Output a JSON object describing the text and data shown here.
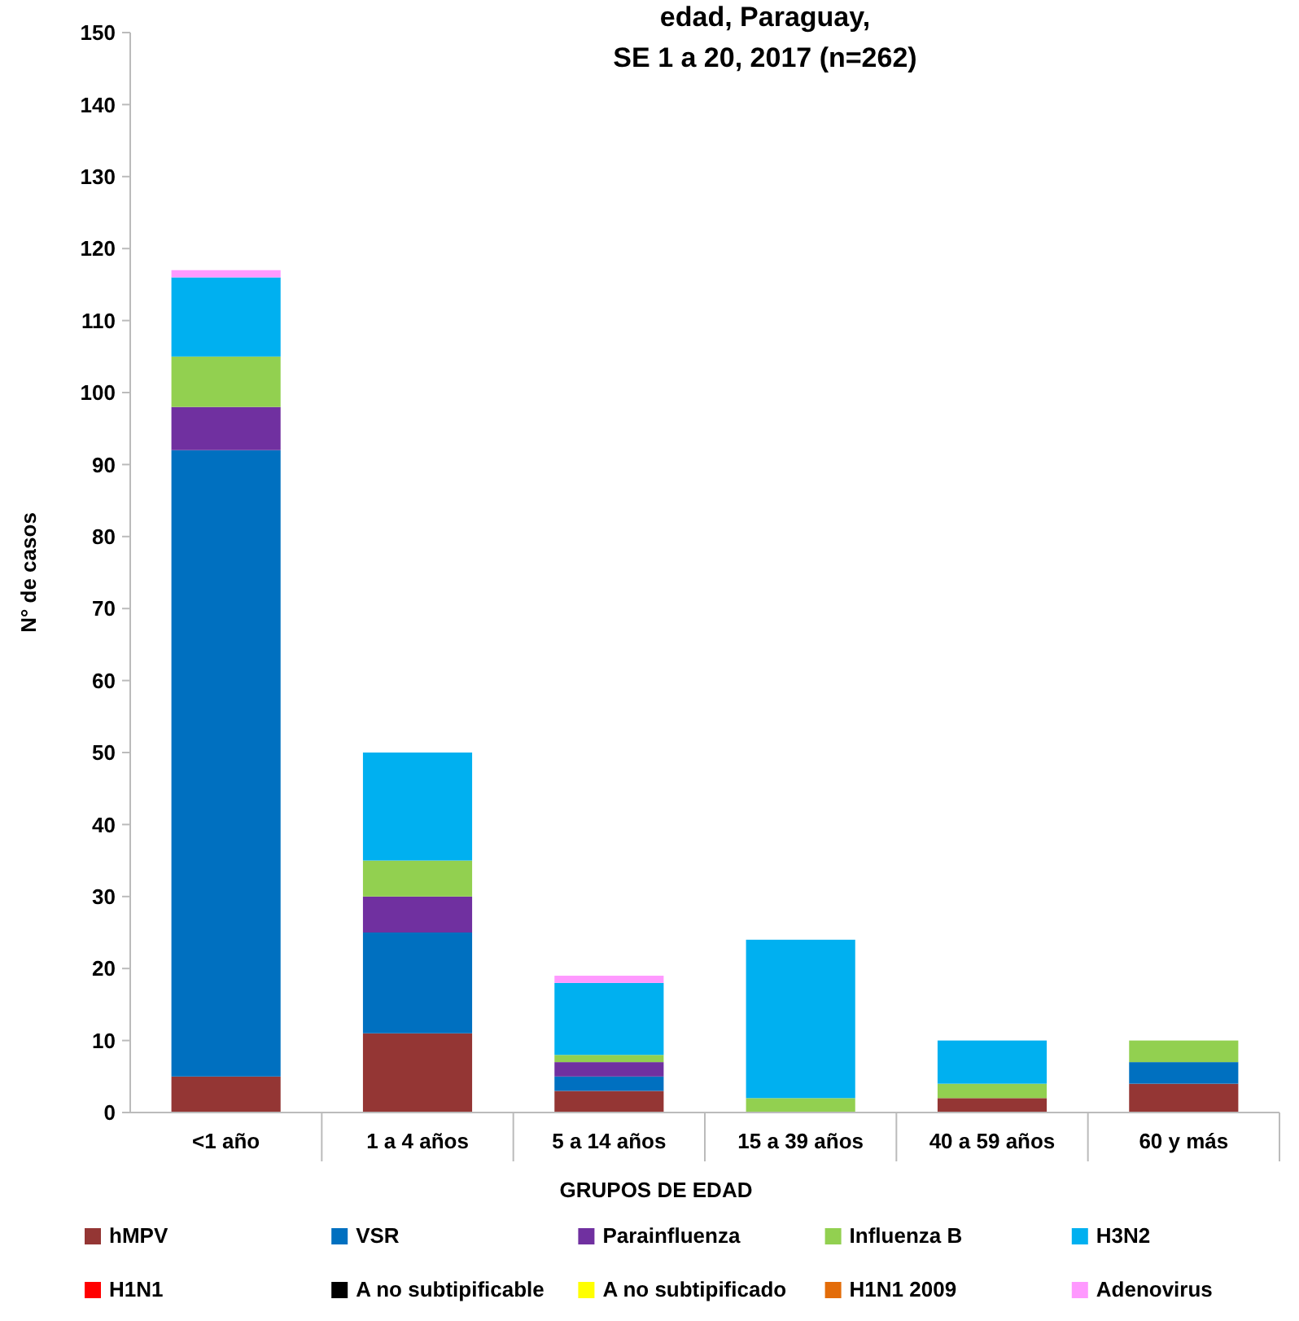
{
  "chart_data": {
    "type": "bar",
    "title": "edad, Paraguay,\nSE 1 a 20, 2017  (n=262)",
    "xlabel": "GRUPOS DE EDAD",
    "ylabel": "N° de casos",
    "categories": [
      "<1 año",
      "1 a 4 años",
      "5 a 14 años",
      "15 a 39 años",
      "40 a 59 años",
      "60 y más"
    ],
    "stacked": true,
    "ylim": [
      0,
      150
    ],
    "yticks": [
      0,
      10,
      20,
      30,
      40,
      50,
      60,
      70,
      80,
      90,
      100,
      110,
      120,
      130,
      140,
      150
    ],
    "grid": false,
    "legend": "bottom",
    "series": [
      {
        "name": "hMPV",
        "color": "#943634",
        "values": [
          5,
          11,
          3,
          0,
          2,
          4
        ]
      },
      {
        "name": "VSR",
        "color": "#0070c0",
        "values": [
          87,
          14,
          2,
          0,
          0,
          3
        ]
      },
      {
        "name": "Parainfluenza",
        "color": "#7030a0",
        "values": [
          6,
          5,
          2,
          0,
          0,
          0
        ]
      },
      {
        "name": "Influenza  B",
        "color": "#92d050",
        "values": [
          7,
          5,
          1,
          2,
          2,
          3
        ]
      },
      {
        "name": "H3N2",
        "color": "#00b0f0",
        "values": [
          11,
          15,
          10,
          22,
          6,
          0
        ]
      },
      {
        "name": "H1N1",
        "color": "#ff0000",
        "values": [
          0,
          0,
          0,
          0,
          0,
          0
        ]
      },
      {
        "name": "A no subtipificable",
        "color": "#000000",
        "values": [
          0,
          0,
          0,
          0,
          0,
          0
        ]
      },
      {
        "name": "A no subtipificado",
        "color": "#ffff00",
        "values": [
          0,
          0,
          0,
          0,
          0,
          0
        ]
      },
      {
        "name": "H1N1 2009",
        "color": "#e36c09",
        "values": [
          0,
          0,
          0,
          0,
          0,
          0
        ]
      },
      {
        "name": "Adenovirus",
        "color": "#ff99ff",
        "values": [
          1,
          0,
          1,
          0,
          0,
          0
        ]
      }
    ]
  }
}
